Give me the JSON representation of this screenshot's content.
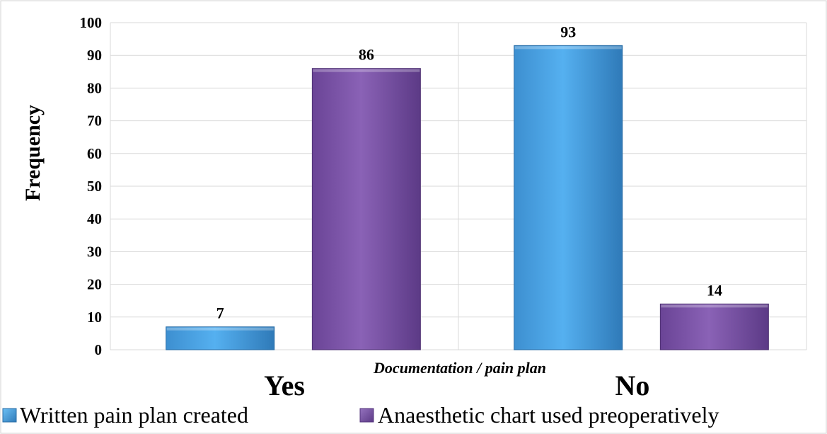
{
  "chart_data": {
    "type": "bar",
    "categories": [
      "Yes",
      "No"
    ],
    "series": [
      {
        "name": "Written pain plan created",
        "values": [
          7,
          93
        ]
      },
      {
        "name": "Anaesthetic chart used preoperatively",
        "values": [
          86,
          14
        ]
      }
    ],
    "xlabel": "Documentation / pain plan",
    "ylabel": "Frequency",
    "ylim": [
      0,
      100
    ],
    "yticks": [
      "0",
      "10",
      "20",
      "30",
      "40",
      "50",
      "60",
      "70",
      "80",
      "90",
      "100"
    ],
    "grid": true,
    "legend": "bottom",
    "colors": {
      "series0": "#4da6e8",
      "series1": "#7d55a8"
    }
  }
}
